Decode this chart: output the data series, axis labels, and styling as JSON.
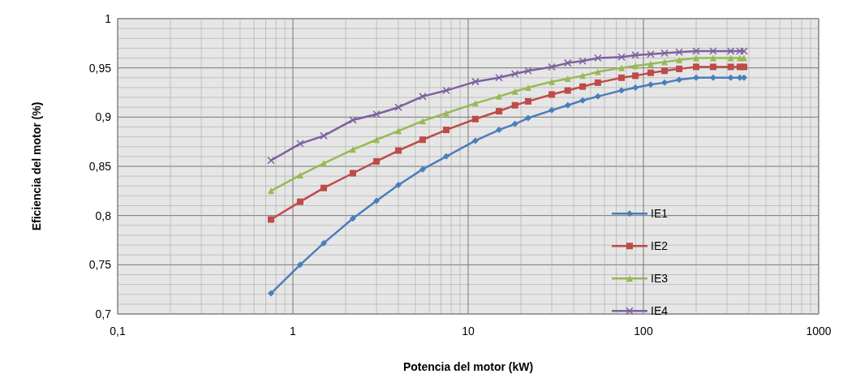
{
  "chart_data": {
    "type": "line",
    "xlabel": "Potencia del motor (kW)",
    "ylabel": "Eficiencia  del motor (%)",
    "log": "x",
    "grid": true,
    "legend": "right",
    "line_style": "solid",
    "x": [
      0.75,
      1.1,
      1.5,
      2.2,
      3,
      4,
      5.5,
      7.5,
      11,
      15,
      18.5,
      22,
      30,
      37,
      45,
      55,
      75,
      90,
      110,
      132,
      160,
      200,
      250,
      315,
      355,
      375
    ],
    "xlim": [
      0.1,
      1000
    ],
    "xticks": [
      {
        "value": 0.1,
        "label": "0,1"
      },
      {
        "value": 0.2,
        "label": null
      },
      {
        "value": 0.3,
        "label": null
      },
      {
        "value": 0.4,
        "label": null
      },
      {
        "value": 0.5,
        "label": null
      },
      {
        "value": 0.6,
        "label": null
      },
      {
        "value": 0.7,
        "label": null
      },
      {
        "value": 0.8,
        "label": null
      },
      {
        "value": 0.9,
        "label": null
      },
      1,
      {
        "value": 2,
        "label": null
      },
      {
        "value": 3,
        "label": null
      },
      {
        "value": 4,
        "label": null
      },
      {
        "value": 5,
        "label": null
      },
      {
        "value": 6,
        "label": null
      },
      {
        "value": 7,
        "label": null
      },
      {
        "value": 8,
        "label": null
      },
      {
        "value": 9,
        "label": null
      },
      10,
      {
        "value": 20,
        "label": null
      },
      {
        "value": 30,
        "label": null
      },
      {
        "value": 40,
        "label": null
      },
      {
        "value": 50,
        "label": null
      },
      {
        "value": 60,
        "label": null
      },
      {
        "value": 70,
        "label": null
      },
      {
        "value": 80,
        "label": null
      },
      {
        "value": 90,
        "label": null
      },
      100,
      {
        "value": 200,
        "label": null
      },
      {
        "value": 300,
        "label": null
      },
      {
        "value": 400,
        "label": null
      },
      {
        "value": 500,
        "label": null
      },
      {
        "value": 600,
        "label": null
      },
      {
        "value": 700,
        "label": null
      },
      {
        "value": 800,
        "label": null
      },
      {
        "value": 900,
        "label": null
      },
      1000
    ],
    "ylim": [
      0.7,
      1
    ],
    "yticks": [
      {
        "value": 0.7,
        "label": "0,7"
      },
      {
        "value": 0.71,
        "label": null
      },
      {
        "value": 0.72,
        "label": null
      },
      {
        "value": 0.73,
        "label": null
      },
      {
        "value": 0.74,
        "label": null
      },
      {
        "value": 0.75,
        "label": "0,75"
      },
      {
        "value": 0.76,
        "label": null
      },
      {
        "value": 0.77,
        "label": null
      },
      {
        "value": 0.78,
        "label": null
      },
      {
        "value": 0.79,
        "label": null
      },
      {
        "value": 0.8,
        "label": "0,8"
      },
      {
        "value": 0.81,
        "label": null
      },
      {
        "value": 0.82,
        "label": null
      },
      {
        "value": 0.83,
        "label": null
      },
      {
        "value": 0.84,
        "label": null
      },
      {
        "value": 0.85,
        "label": "0,85"
      },
      {
        "value": 0.86,
        "label": null
      },
      {
        "value": 0.87,
        "label": null
      },
      {
        "value": 0.88,
        "label": null
      },
      {
        "value": 0.89,
        "label": null
      },
      {
        "value": 0.9,
        "label": "0,9"
      },
      {
        "value": 0.91,
        "label": null
      },
      {
        "value": 0.92,
        "label": null
      },
      {
        "value": 0.93,
        "label": null
      },
      {
        "value": 0.94,
        "label": null
      },
      {
        "value": 0.95,
        "label": "0,95"
      },
      {
        "value": 0.96,
        "label": null
      },
      {
        "value": 0.97,
        "label": null
      },
      {
        "value": 0.98,
        "label": null
      },
      {
        "value": 0.99,
        "label": null
      },
      1
    ],
    "series": [
      {
        "name": "IE1",
        "color": "#4a7ebb",
        "marker": "diamond",
        "values": [
          0.721,
          0.75,
          0.772,
          0.797,
          0.815,
          0.831,
          0.847,
          0.86,
          0.876,
          0.887,
          0.893,
          0.899,
          0.907,
          0.912,
          0.917,
          0.921,
          0.927,
          0.93,
          0.933,
          0.935,
          0.938,
          0.94,
          0.94,
          0.94,
          0.94,
          0.94
        ]
      },
      {
        "name": "IE2",
        "color": "#be4b48",
        "marker": "square",
        "values": [
          0.796,
          0.814,
          0.828,
          0.843,
          0.855,
          0.866,
          0.877,
          0.887,
          0.898,
          0.906,
          0.912,
          0.916,
          0.923,
          0.927,
          0.931,
          0.935,
          0.94,
          0.942,
          0.945,
          0.947,
          0.949,
          0.951,
          0.951,
          0.951,
          0.951,
          0.951
        ]
      },
      {
        "name": "IE3",
        "color": "#98b954",
        "marker": "triangle",
        "values": [
          0.825,
          0.841,
          0.853,
          0.867,
          0.877,
          0.886,
          0.896,
          0.904,
          0.914,
          0.921,
          0.926,
          0.93,
          0.936,
          0.939,
          0.942,
          0.946,
          0.95,
          0.952,
          0.954,
          0.956,
          0.958,
          0.96,
          0.96,
          0.96,
          0.96,
          0.96
        ]
      },
      {
        "name": "IE4",
        "color": "#7d60a0",
        "marker": "cross",
        "values": [
          0.856,
          0.873,
          0.881,
          0.897,
          0.903,
          0.91,
          0.921,
          0.927,
          0.936,
          0.94,
          0.944,
          0.947,
          0.951,
          0.955,
          0.957,
          0.96,
          0.961,
          0.963,
          0.964,
          0.965,
          0.966,
          0.967,
          0.967,
          0.967,
          0.967,
          0.967
        ]
      }
    ]
  }
}
